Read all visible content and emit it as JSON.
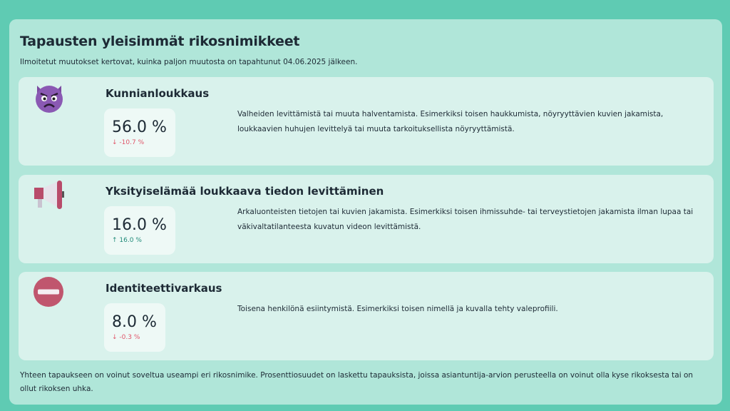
{
  "title": "Tapausten yleisimmät rikosnimikkeet",
  "subtitle": "Ilmoitetut muutokset kertovat, kuinka paljon muutosta on tapahtunut 04.06.2025 jälkeen.",
  "items": [
    {
      "icon": "angry-devil-icon",
      "name": "Kunnianloukkaus",
      "value": "56.0 %",
      "change": "-10.7 %",
      "direction": "down",
      "arrow": "↓",
      "description": "Valheiden levittämistä tai muuta halventamista. Esimerkiksi toisen haukkumista, nöyryyttävien kuvien jakamista, loukkaavien huhujen levittelyä tai muuta tarkoituksellista nöyryyttämistä."
    },
    {
      "icon": "megaphone-icon",
      "name": "Yksityiselämää loukkaava tiedon levittäminen",
      "value": "16.0 %",
      "change": "16.0 %",
      "direction": "up",
      "arrow": "↑",
      "description": "Arkaluonteisten tietojen tai kuvien jakamista. Esimerkiksi toisen ihmissuhde- tai terveystietojen jakamista ilman lupaa tai väkivaltatilanteesta kuvatun videon levittämistä."
    },
    {
      "icon": "no-entry-icon",
      "name": "Identiteettivarkaus",
      "value": "8.0 %",
      "change": "-0.3 %",
      "direction": "down",
      "arrow": "↓",
      "description": "Toisena henkilönä esiintymistä. Esimerkiksi toisen nimellä ja kuvalla tehty valeprofiili."
    }
  ],
  "footnote": "Yhteen tapaukseen on voinut soveltua useampi eri rikosnimike. Prosenttiosuudet on laskettu tapauksista, joissa asiantuntija-arvion perusteella on voinut olla kyse rikoksesta tai on ollut rikoksen uhka.",
  "colors": {
    "background": "#5fcbb3",
    "panel": "#b0e6d9",
    "card": "#d9f2ec",
    "down": "#e0566a",
    "up": "#1f8a78"
  }
}
